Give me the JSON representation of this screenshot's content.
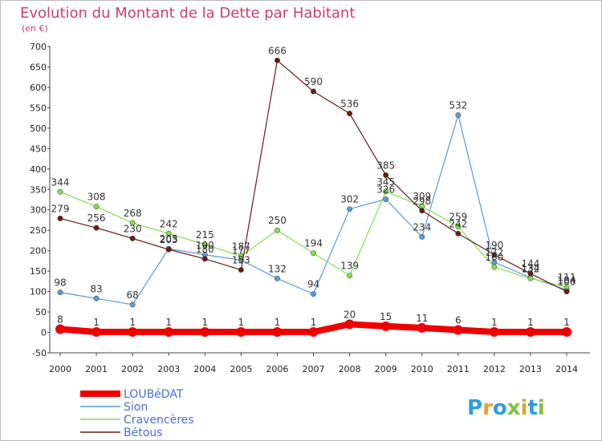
{
  "chart_data": {
    "type": "line",
    "title": "Evolution du Montant de la Dette par Habitant",
    "subtitle": "(en €)",
    "x": [
      "2000",
      "2001",
      "2002",
      "2003",
      "2004",
      "2005",
      "2006",
      "2007",
      "2008",
      "2009",
      "2010",
      "2011",
      "2012",
      "2013",
      "2014"
    ],
    "yticks": [
      -50,
      0,
      50,
      100,
      150,
      200,
      250,
      300,
      350,
      400,
      450,
      500,
      550,
      600,
      650,
      700
    ],
    "ylim": [
      -50,
      700
    ],
    "grid": false,
    "legend_position": "bottom-left",
    "series": [
      {
        "name": "LOUBéDAT",
        "color": "#ee0000",
        "values": [
          8,
          1,
          1,
          1,
          1,
          1,
          1,
          1,
          20,
          15,
          11,
          6,
          1,
          1,
          1
        ]
      },
      {
        "name": "Sion",
        "color": "#5b9bd5",
        "values": [
          98,
          83,
          68,
          205,
          190,
          177,
          132,
          94,
          302,
          326,
          234,
          532,
          172,
          134,
          104
        ]
      },
      {
        "name": "Cravencères",
        "color": "#80df50",
        "values": [
          344,
          308,
          268,
          242,
          215,
          187,
          250,
          194,
          139,
          345,
          309,
          259,
          160,
          132,
          111
        ]
      },
      {
        "name": "Bétous",
        "color": "#6b1a1a",
        "values": [
          279,
          256,
          230,
          203,
          180,
          153,
          666,
          590,
          536,
          385,
          298,
          242,
          190,
          144,
          100
        ]
      }
    ]
  },
  "logo": {
    "text": "Proxiti"
  }
}
